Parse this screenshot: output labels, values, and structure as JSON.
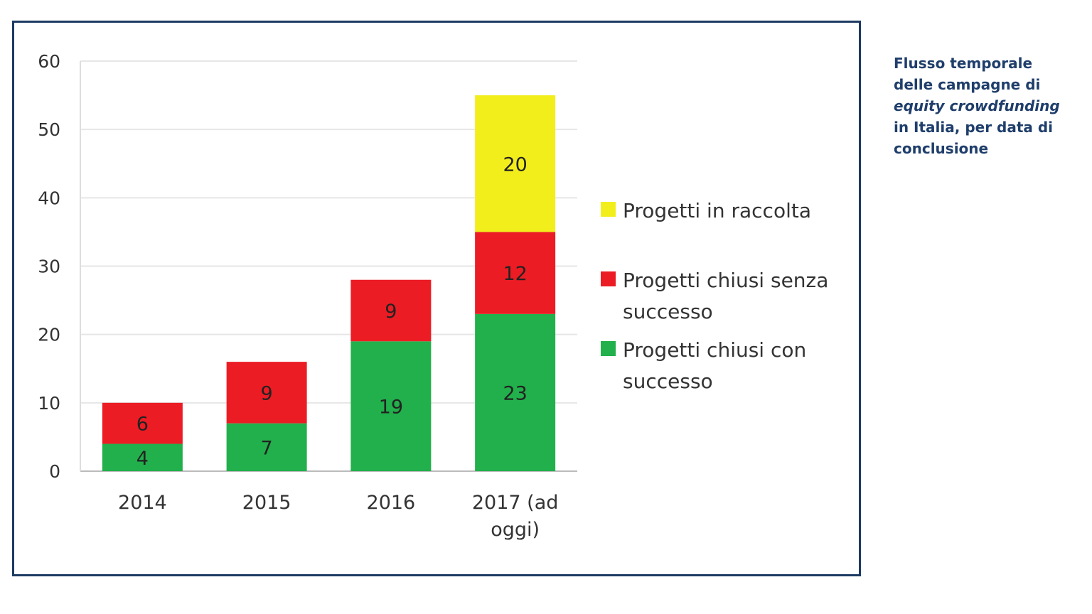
{
  "caption": {
    "line1": "Flusso temporale",
    "line2": "delle campagne di",
    "line3_italic": "equity crowdfunding",
    "line4": "in Italia, per data di",
    "line5": "conclusione"
  },
  "chart_data": {
    "type": "bar",
    "stacked": true,
    "categories": [
      "2014",
      "2015",
      "2016",
      "2017 (ad oggi)"
    ],
    "category_lines": [
      [
        "2014"
      ],
      [
        "2015"
      ],
      [
        "2016"
      ],
      [
        "2017 (ad",
        "oggi)"
      ]
    ],
    "series": [
      {
        "name": "Progetti chiusi con successo",
        "color": "#21b04b",
        "values": [
          4,
          7,
          19,
          23
        ]
      },
      {
        "name": "Progetti chiusi senza successo",
        "color": "#ec1c24",
        "values": [
          6,
          9,
          9,
          12
        ]
      },
      {
        "name": "Progetti in raccolta",
        "color": "#f2ee1c",
        "values": [
          0,
          0,
          0,
          20
        ]
      }
    ],
    "legend_order": [
      {
        "series": 2,
        "lines": [
          "Progetti in raccolta"
        ]
      },
      {
        "series": 1,
        "lines": [
          "Progetti chiusi senza",
          "successo"
        ]
      },
      {
        "series": 0,
        "lines": [
          "Progetti chiusi con",
          "successo"
        ]
      }
    ],
    "ylim": [
      0,
      60
    ],
    "yticks": [
      0,
      10,
      20,
      30,
      40,
      50,
      60
    ],
    "grid": true,
    "legend_position": "right",
    "frame_color": "#1c3a63"
  }
}
